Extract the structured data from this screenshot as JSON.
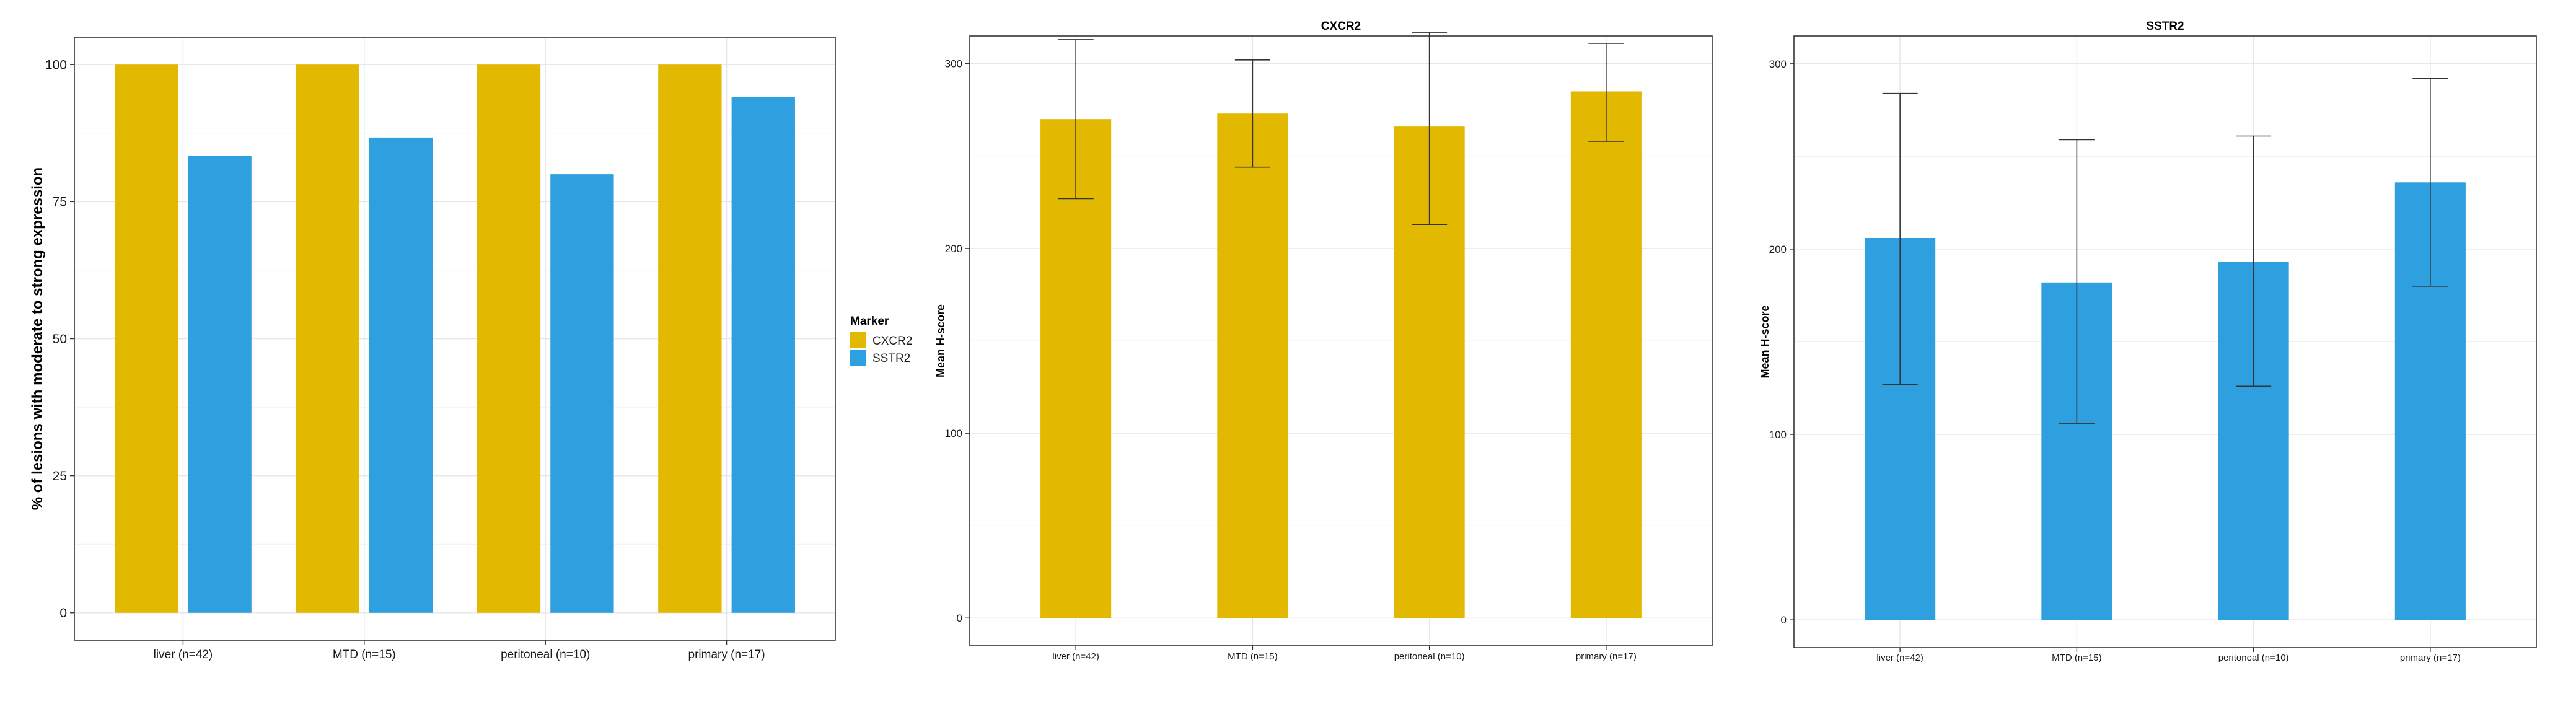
{
  "colors": {
    "CXCR2": "#E3B800",
    "SSTR2": "#2E9FDF",
    "error_bar": "#333333",
    "grid": "#E6E6E6",
    "frame": "#333333"
  },
  "chart_data": [
    {
      "type": "bar",
      "title": "",
      "xlabel": "",
      "ylabel": "% of lesions with moderate to strong expression",
      "categories": [
        "liver (n=42)",
        "MTD (n=15)",
        "peritoneal (n=10)",
        "primary (n=17)"
      ],
      "series": [
        {
          "name": "CXCR2",
          "values": [
            100,
            100,
            100,
            100
          ]
        },
        {
          "name": "SSTR2",
          "values": [
            83.3,
            86.7,
            80,
            94.1
          ]
        }
      ],
      "ylim": [
        0,
        100
      ],
      "yticks": [
        0,
        25,
        50,
        75,
        100
      ],
      "grid": true,
      "legend": {
        "title": "Marker",
        "position": "right",
        "entries": [
          "CXCR2",
          "SSTR2"
        ]
      }
    },
    {
      "type": "bar",
      "title": "CXCR2",
      "xlabel": "",
      "ylabel": "Mean H-score",
      "categories": [
        "liver (n=42)",
        "MTD (n=15)",
        "peritoneal (n=10)",
        "primary (n=17)"
      ],
      "series": [
        {
          "name": "CXCR2",
          "values": [
            270,
            273,
            266,
            285
          ],
          "error_low": [
            227,
            244,
            213,
            258
          ],
          "error_high": [
            313,
            302,
            317,
            311
          ]
        }
      ],
      "ylim": [
        0,
        300
      ],
      "yticks": [
        0,
        100,
        200,
        300
      ],
      "grid": true
    },
    {
      "type": "bar",
      "title": "SSTR2",
      "xlabel": "",
      "ylabel": "Mean H-score",
      "categories": [
        "liver (n=42)",
        "MTD (n=15)",
        "peritoneal (n=10)",
        "primary (n=17)"
      ],
      "series": [
        {
          "name": "SSTR2",
          "values": [
            206,
            182,
            193,
            236
          ],
          "error_low": [
            127,
            106,
            126,
            180
          ],
          "error_high": [
            284,
            259,
            261,
            292
          ]
        }
      ],
      "ylim": [
        0,
        300
      ],
      "yticks": [
        0,
        100,
        200,
        300
      ],
      "grid": true
    }
  ]
}
